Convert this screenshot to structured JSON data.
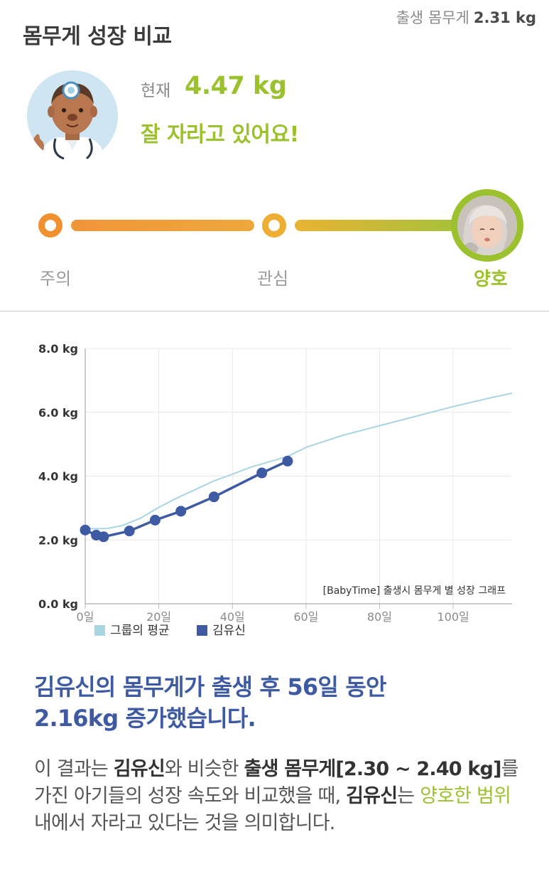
{
  "header": {
    "title": "몸무게 성장 비교",
    "birth_weight_label": "출생 몸무게",
    "birth_weight_value": "2.31 kg"
  },
  "current": {
    "label": "현재",
    "value": "4.47 kg",
    "message": "잘 자라고 있어요!"
  },
  "scale": {
    "caution": "주의",
    "interest": "관심",
    "good": "양호",
    "active": "good"
  },
  "colors": {
    "green": "#9cc12f",
    "orange": "#f0902e",
    "yellow": "#eeae33",
    "navy": "#3d5aa3",
    "avg_line": "#a8d5e2"
  },
  "chart_data": {
    "type": "line",
    "x_unit": "일",
    "y_unit": "kg",
    "xlim": [
      0,
      116
    ],
    "ylim": [
      0,
      8
    ],
    "x_ticks": [
      0,
      20,
      40,
      60,
      80,
      100
    ],
    "x_tick_labels": [
      "0일",
      "20일",
      "40일",
      "60일",
      "80일",
      "100일"
    ],
    "y_ticks": [
      0,
      2,
      4,
      6,
      8
    ],
    "y_tick_labels": [
      "0.0 kg",
      "2.0 kg",
      "4.0 kg",
      "6.0 kg",
      "8.0 kg"
    ],
    "grid": true,
    "legend_position": "bottom-left",
    "annotation": "[BabyTime] 출생시 몸무게 별 성장 그래프",
    "series": [
      {
        "name": "그룹의 평균",
        "color": "#a8d5e2",
        "show_points": false,
        "x": [
          0,
          3,
          6,
          10,
          15,
          20,
          25,
          30,
          35,
          40,
          45,
          50,
          55,
          60,
          70,
          80,
          90,
          100,
          110,
          116
        ],
        "y": [
          2.36,
          2.35,
          2.36,
          2.45,
          2.68,
          3.02,
          3.32,
          3.58,
          3.85,
          4.06,
          4.28,
          4.45,
          4.62,
          4.9,
          5.28,
          5.58,
          5.88,
          6.18,
          6.45,
          6.6
        ]
      },
      {
        "name": "김유신",
        "color": "#3d5aa3",
        "show_points": true,
        "x": [
          0,
          3,
          5,
          12,
          19,
          26,
          35,
          48,
          55
        ],
        "y": [
          2.31,
          2.15,
          2.1,
          2.28,
          2.62,
          2.9,
          3.35,
          4.1,
          4.47
        ]
      }
    ]
  },
  "summary": {
    "line1": "김유신의 몸무게가 출생 후 56일 동안",
    "line2": "2.16kg 증가했습니다."
  },
  "description": {
    "p1": "이 결과는 ",
    "name1": "김유신",
    "p2": "와 비슷한 ",
    "birth_range": "출생 몸무게[2.30 ~ 2.40 kg]",
    "p3": "를 가진 아기들의 성장 속도와 비교했을 때, ",
    "name2": "김유신",
    "p4": "는 ",
    "good_range": "양호한 범위",
    "p5": " 내에서 자라고 있다는 것을 의미합니다."
  }
}
